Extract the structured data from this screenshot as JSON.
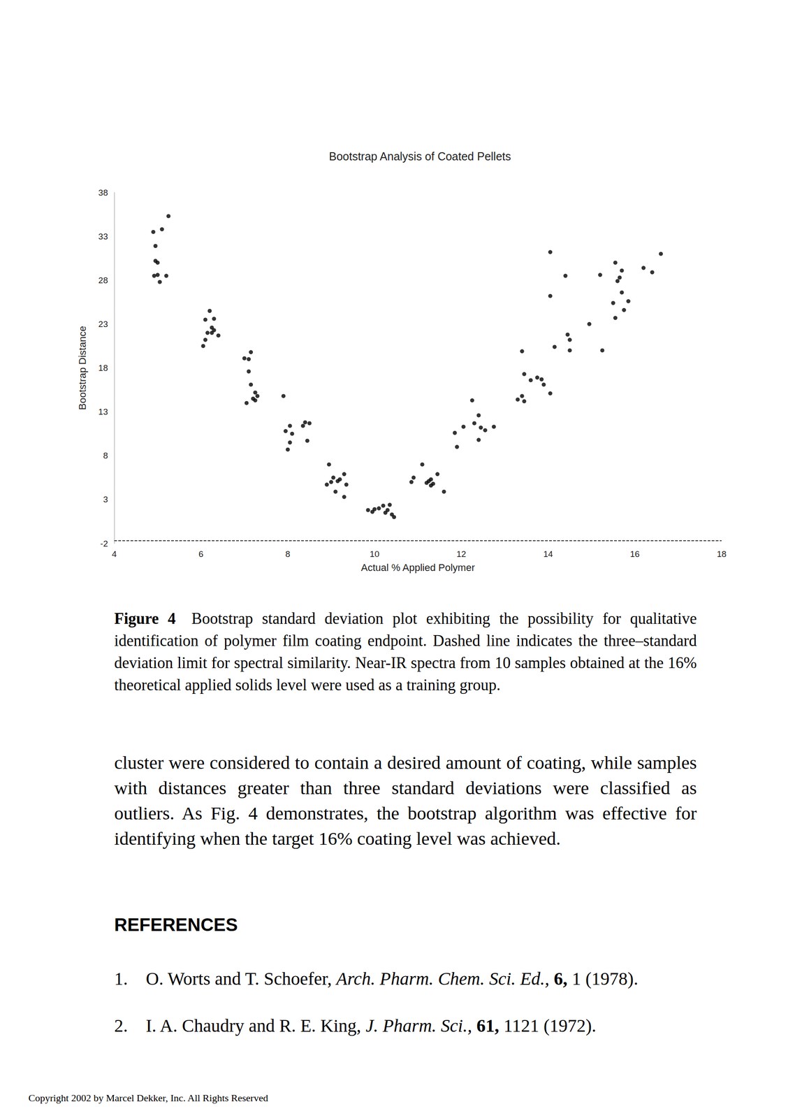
{
  "chart_data": {
    "type": "scatter",
    "title": "Bootstrap Analysis of Coated Pellets",
    "x_label": "Actual % Applied Polymer",
    "y_label": "Bootstrap Distance",
    "x": [
      5.25,
      5.1,
      4.9,
      4.95,
      4.95,
      5.0,
      4.92,
      5.2,
      5.05,
      5.0,
      6.2,
      6.3,
      6.1,
      6.25,
      6.4,
      6.15,
      6.3,
      6.05,
      6.1,
      6.25,
      7.0,
      7.15,
      7.1,
      7.15,
      7.25,
      7.2,
      7.05,
      7.3,
      7.25,
      7.1,
      7.9,
      8.05,
      7.95,
      8.05,
      8.0,
      8.35,
      8.5,
      8.45,
      8.1,
      8.4,
      8.95,
      9.05,
      8.9,
      9.15,
      9.3,
      9.35,
      9.3,
      9.1,
      9.2,
      9.0,
      9.85,
      9.95,
      10.1,
      10.2,
      10.3,
      10.4,
      10.35,
      10.0,
      10.25,
      10.45,
      10.85,
      11.1,
      11.25,
      11.35,
      11.45,
      11.6,
      11.3,
      10.9,
      11.3,
      11.2,
      12.25,
      12.4,
      12.05,
      11.85,
      11.9,
      12.3,
      12.45,
      12.55,
      12.75,
      12.4,
      13.4,
      13.45,
      13.6,
      13.85,
      13.9,
      14.05,
      13.3,
      13.45,
      13.4,
      13.75,
      14.05,
      14.05,
      14.4,
      14.15,
      14.45,
      14.5,
      14.5,
      14.95,
      15.2,
      15.25,
      15.55,
      15.7,
      15.65,
      15.7,
      15.5,
      15.85,
      15.75,
      15.55,
      16.2,
      16.4,
      16.6,
      15.6
    ],
    "values": [
      35.3,
      33.8,
      33.5,
      31.9,
      30.2,
      28.6,
      28.5,
      28.5,
      27.8,
      30.0,
      24.5,
      23.6,
      23.5,
      22.6,
      21.7,
      22.0,
      22.3,
      20.5,
      21.2,
      22.0,
      19.1,
      19.8,
      17.6,
      16.1,
      15.2,
      14.5,
      14.0,
      14.8,
      14.3,
      19.0,
      14.8,
      11.4,
      10.8,
      9.5,
      8.7,
      11.4,
      11.7,
      9.7,
      10.5,
      11.8,
      7.0,
      5.5,
      4.7,
      5.1,
      5.9,
      4.7,
      3.3,
      3.9,
      5.3,
      5.0,
      1.8,
      1.6,
      2.0,
      2.3,
      1.8,
      1.3,
      2.4,
      1.9,
      1.5,
      1.0,
      5.0,
      7.0,
      5.1,
      4.8,
      5.9,
      3.9,
      4.6,
      5.5,
      5.3,
      4.9,
      14.3,
      12.6,
      11.3,
      10.6,
      9.0,
      11.7,
      11.2,
      10.9,
      11.3,
      9.8,
      19.9,
      17.3,
      16.6,
      16.7,
      16.1,
      15.1,
      14.4,
      14.2,
      14.8,
      16.9,
      31.2,
      26.2,
      28.5,
      20.4,
      21.8,
      21.2,
      20.0,
      23.0,
      28.6,
      20.0,
      30.0,
      29.1,
      28.3,
      26.6,
      25.4,
      25.6,
      24.6,
      23.7,
      29.4,
      28.9,
      31.0,
      27.9
    ],
    "color": "#000000",
    "marker": "circle",
    "xlim": [
      4,
      18
    ],
    "xticks": [
      4,
      6,
      8,
      10,
      12,
      14,
      16,
      18
    ],
    "ylim": [
      -2,
      38
    ],
    "yticks": [
      -2,
      3,
      8,
      13,
      18,
      23,
      28,
      33,
      38
    ],
    "grid": false,
    "limit_line": {
      "value": -1.7,
      "line_style": "dashed"
    }
  },
  "caption": {
    "label": "Figure 4",
    "text": "Bootstrap standard deviation plot exhibiting the possibility for qualitative identification of polymer film coating endpoint. Dashed line indicates the three–standard deviation limit for spectral similarity. Near-IR spectra from 10 samples obtained at the 16% theoretical applied solids level were used as a training group."
  },
  "body": "cluster were considered to contain a desired amount of coating, while samples with distances greater than three standard deviations were classified as outliers. As Fig. 4 demonstrates, the bootstrap algorithm was effective for identifying when the target 16% coating level was achieved.",
  "references": {
    "heading": "REFERENCES",
    "items": [
      {
        "number": "1.",
        "authors": "O. Worts and T. Schoefer,",
        "journal": "Arch. Pharm. Chem. Sci. Ed.,",
        "volume": "6,",
        "rest": "1 (1978)."
      },
      {
        "number": "2.",
        "authors": "I. A. Chaudry and R. E. King,",
        "journal": "J. Pharm. Sci.,",
        "volume": "61,",
        "rest": "1121 (1972)."
      }
    ]
  },
  "footer": "Copyright 2002 by Marcel Dekker, Inc. All Rights Reserved"
}
